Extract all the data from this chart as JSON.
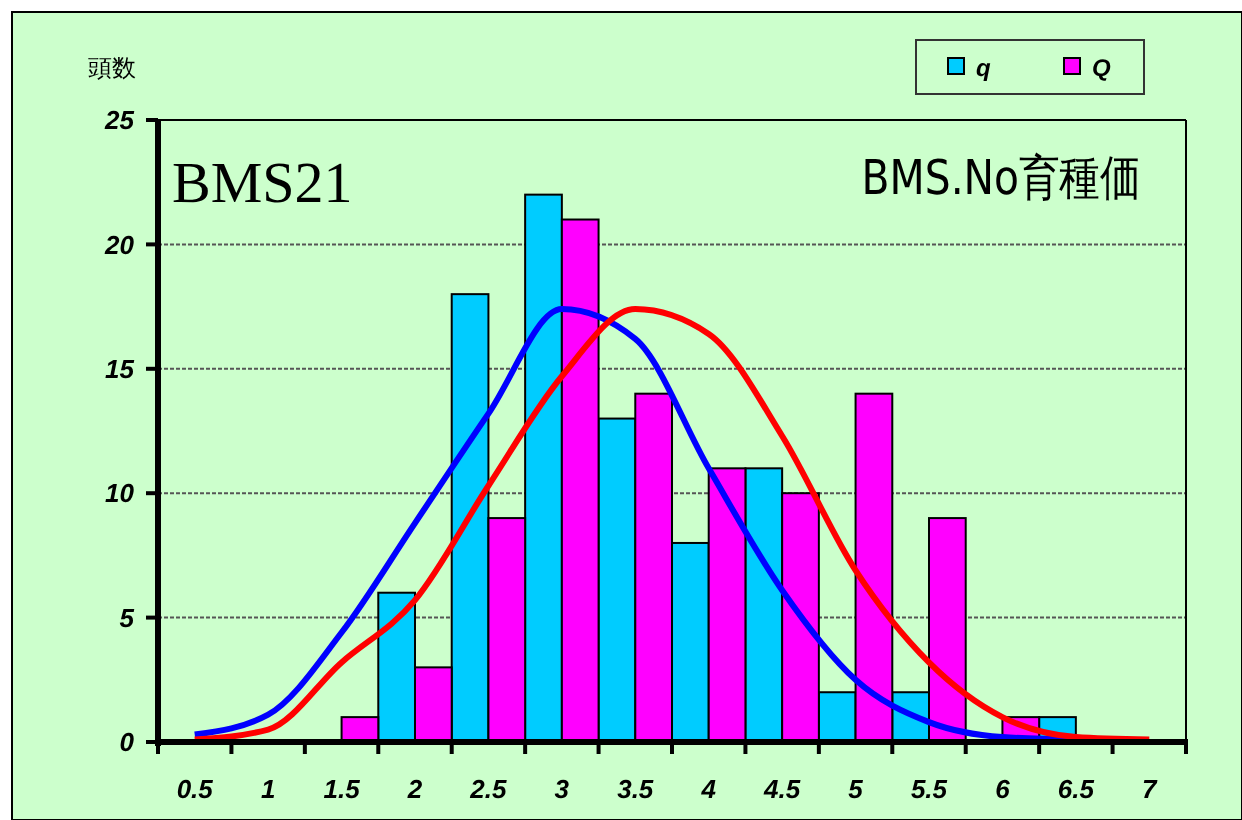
{
  "chart_data": {
    "type": "bar",
    "ylabel": "頭数",
    "annotations": [
      "BMS21",
      "BMS.No育種価"
    ],
    "categories": [
      "0.5",
      "1",
      "1.5",
      "2",
      "2.5",
      "3",
      "3.5",
      "4",
      "4.5",
      "5",
      "5.5",
      "6",
      "6.5",
      "7"
    ],
    "series": [
      {
        "name": "q",
        "color": "#00ccff",
        "values": [
          0,
          0,
          0,
          6,
          18,
          22,
          13,
          8,
          11,
          2,
          2,
          0,
          1,
          0
        ]
      },
      {
        "name": "Q",
        "color": "#ff00ff",
        "values": [
          0,
          0,
          1,
          3,
          9,
          21,
          14,
          11,
          10,
          14,
          9,
          1,
          0,
          0
        ]
      },
      {
        "type": "line",
        "color": "#0000ff",
        "values": [
          0.3,
          1.1,
          4.4,
          8.8,
          13.2,
          17.4,
          16.2,
          11,
          6.1,
          2.5,
          0.8,
          0.2,
          0.1,
          null
        ]
      },
      {
        "type": "line",
        "color": "#ff0000",
        "values": [
          0.1,
          0.5,
          3.2,
          5.7,
          10.3,
          14.7,
          17.4,
          16.4,
          12.3,
          6.9,
          3.2,
          1,
          0.2,
          0.1
        ]
      }
    ],
    "ylim": [
      0,
      25
    ],
    "yticks": [
      0,
      5,
      10,
      15,
      20,
      25
    ],
    "grid": "y",
    "legend": "top right",
    "marker": "none"
  }
}
